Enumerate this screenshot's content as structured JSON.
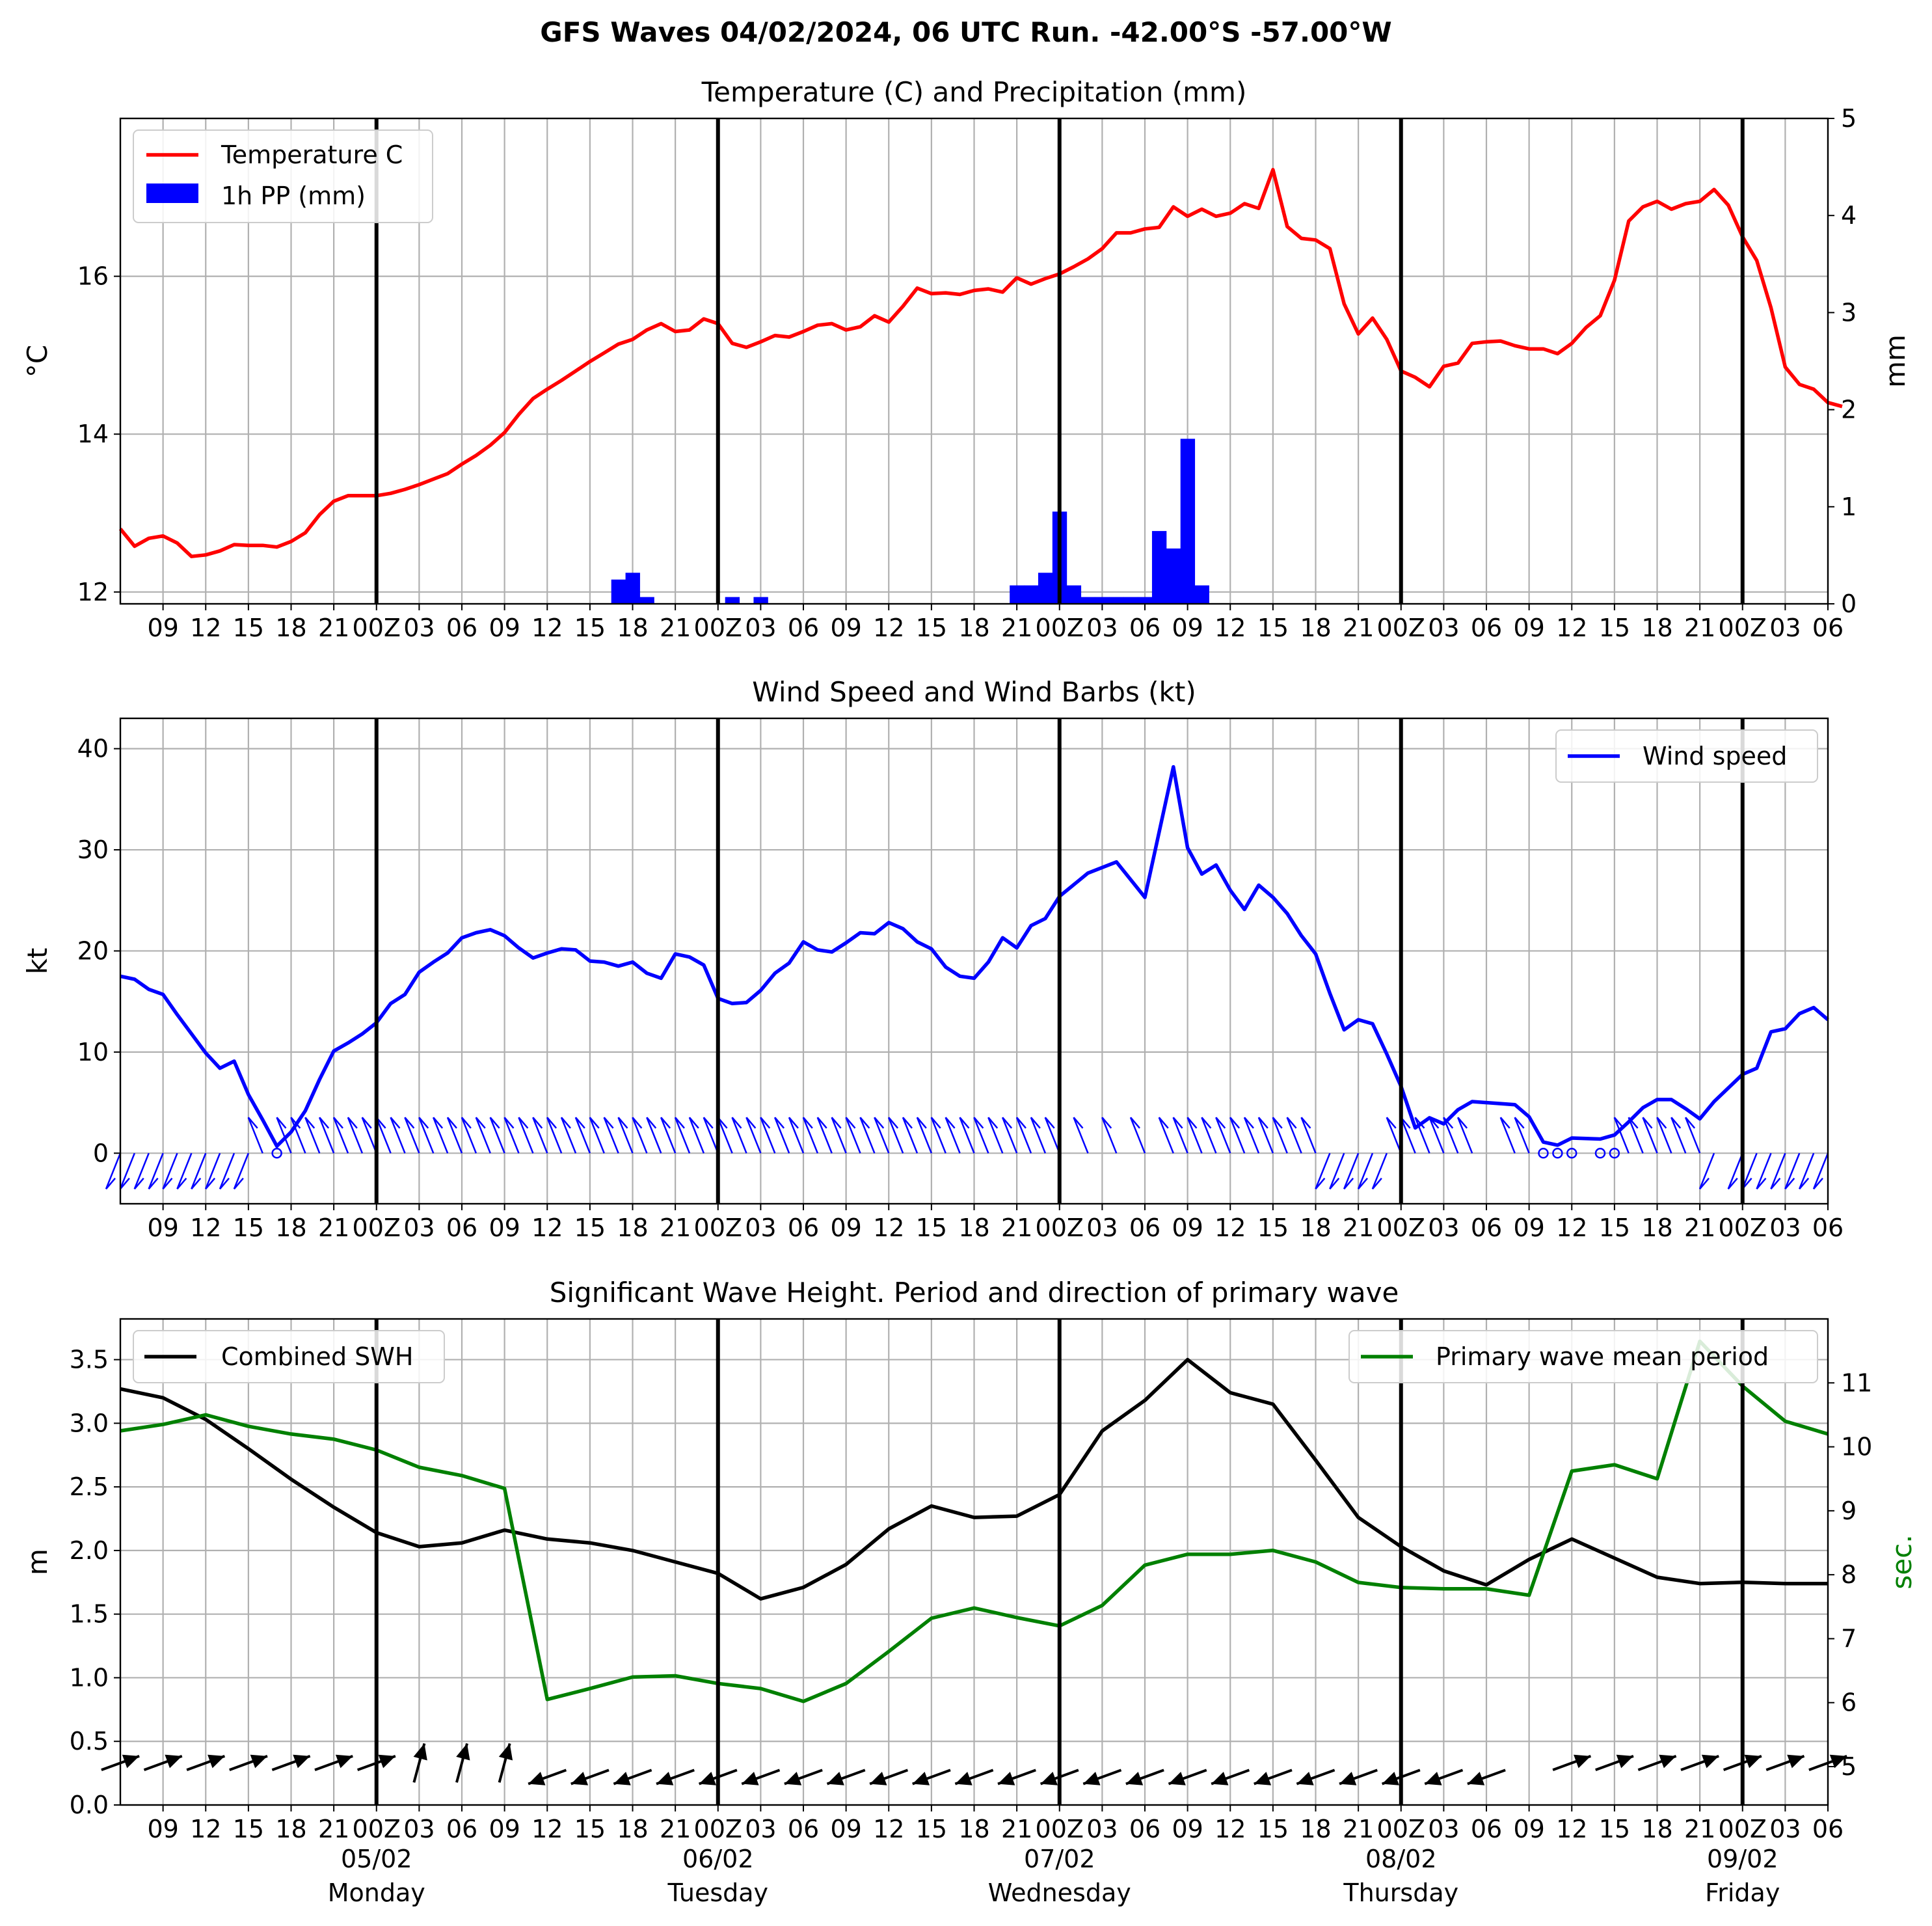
{
  "chart_data": {
    "type": "multi-panel",
    "title": "GFS Waves 04/02/2024, 06 UTC Run. -42.00°S -57.00°W",
    "x_tick_labels": [
      "09",
      "12",
      "15",
      "18",
      "21",
      "00Z",
      "03",
      "06",
      "09",
      "12",
      "15",
      "18",
      "21",
      "00Z",
      "03",
      "06",
      "09",
      "12",
      "15",
      "18",
      "21",
      "00Z",
      "03",
      "06",
      "09",
      "12",
      "15",
      "18",
      "21",
      "00Z",
      "03",
      "06",
      "09",
      "12",
      "15",
      "18",
      "21",
      "00Z",
      "03",
      "06"
    ],
    "days": [
      {
        "date": "05/02",
        "weekday": "Monday"
      },
      {
        "date": "06/02",
        "weekday": "Tuesday"
      },
      {
        "date": "07/02",
        "weekday": "Wednesday"
      },
      {
        "date": "08/02",
        "weekday": "Thursday"
      },
      {
        "date": "09/02",
        "weekday": "Friday"
      }
    ],
    "panels": [
      {
        "title": "Temperature (C) and Precipitation (mm)",
        "ylabel": "°C",
        "ylabel_right": "mm",
        "ylim": [
          11.85,
          18.0
        ],
        "ylim_right": [
          0,
          5
        ],
        "yticks": [
          12,
          14,
          16
        ],
        "yticks_right": [
          0,
          1,
          2,
          3,
          4,
          5
        ],
        "series": [
          {
            "name": "Temperature C",
            "color": "#ff0000",
            "type": "line",
            "step_h": 1,
            "values": [
              12.8,
              12.58,
              12.68,
              12.71,
              12.62,
              12.45,
              12.47,
              12.52,
              12.6,
              12.59,
              12.59,
              12.57,
              12.64,
              12.75,
              12.98,
              13.15,
              13.22,
              13.22,
              13.22,
              13.25,
              13.3,
              13.36,
              13.43,
              13.5,
              13.62,
              13.73,
              13.86,
              14.02,
              14.25,
              14.45,
              14.57,
              14.68,
              14.8,
              14.92,
              15.03,
              15.14,
              15.2,
              15.32,
              15.4,
              15.3,
              15.32,
              15.46,
              15.4,
              15.15,
              15.1,
              15.17,
              15.25,
              15.23,
              15.3,
              15.38,
              15.4,
              15.32,
              15.36,
              15.5,
              15.42,
              15.62,
              15.85,
              15.78,
              15.79,
              15.77,
              15.82,
              15.84,
              15.8,
              15.98,
              15.9,
              15.97,
              16.03,
              16.12,
              16.22,
              16.35,
              16.55,
              16.55,
              16.6,
              16.62,
              16.88,
              16.76,
              16.85,
              16.76,
              16.8,
              16.92,
              16.86,
              17.35,
              16.63,
              16.48,
              16.46,
              16.35,
              15.65,
              15.27,
              15.47,
              15.2,
              14.8,
              14.72,
              14.6,
              14.86,
              14.9,
              15.15,
              15.17,
              15.18,
              15.12,
              15.08,
              15.08,
              15.02,
              15.15,
              15.35,
              15.5,
              15.95,
              16.7,
              16.88,
              16.95,
              16.85,
              16.92,
              16.95,
              17.1,
              16.9,
              16.5,
              16.2,
              15.6,
              14.85,
              14.63,
              14.57,
              14.4,
              14.35
            ]
          },
          {
            "name": "1h PP (mm)",
            "color": "#0000ff",
            "type": "bar",
            "axis": "right",
            "bars": [
              {
                "h": 41,
                "v": 0.25
              },
              {
                "h": 42,
                "v": 0.32
              },
              {
                "h": 43,
                "v": 0.07
              },
              {
                "h": 49,
                "v": 0.07
              },
              {
                "h": 51,
                "v": 0.07
              },
              {
                "h": 69,
                "v": 0.19
              },
              {
                "h": 70,
                "v": 0.19
              },
              {
                "h": 71,
                "v": 0.32
              },
              {
                "h": 72,
                "v": 0.95
              },
              {
                "h": 73,
                "v": 0.19
              },
              {
                "h": 74,
                "v": 0.07
              },
              {
                "h": 75,
                "v": 0.07
              },
              {
                "h": 76,
                "v": 0.07
              },
              {
                "h": 77,
                "v": 0.07
              },
              {
                "h": 78,
                "v": 0.07
              },
              {
                "h": 79,
                "v": 0.75
              },
              {
                "h": 80,
                "v": 0.57
              },
              {
                "h": 81,
                "v": 1.7
              },
              {
                "h": 82,
                "v": 0.19
              }
            ]
          }
        ]
      },
      {
        "title": "Wind Speed and Wind Barbs (kt)",
        "ylabel": "kt",
        "ylim": [
          -5,
          43
        ],
        "yticks": [
          0,
          10,
          20,
          30,
          40
        ],
        "series": [
          {
            "name": "Wind speed",
            "color": "#0000ff",
            "type": "line",
            "points": [
              [
                6,
                17.5
              ],
              [
                7,
                17.2
              ],
              [
                8,
                16.2
              ],
              [
                9,
                15.7
              ],
              [
                10,
                13.7
              ],
              [
                11,
                11.8
              ],
              [
                12,
                9.9
              ],
              [
                13,
                8.4
              ],
              [
                14,
                9.1
              ],
              [
                15,
                5.8
              ],
              [
                16,
                3.3
              ],
              [
                17,
                0.7
              ],
              [
                18,
                2.1
              ],
              [
                19,
                4.2
              ],
              [
                20,
                7.3
              ],
              [
                21,
                10.1
              ],
              [
                22,
                10.9
              ],
              [
                23,
                11.8
              ],
              [
                24,
                12.9
              ],
              [
                25,
                14.8
              ],
              [
                26,
                15.7
              ],
              [
                27,
                17.9
              ],
              [
                28,
                18.9
              ],
              [
                29,
                19.8
              ],
              [
                30,
                21.3
              ],
              [
                31,
                21.8
              ],
              [
                32,
                22.1
              ],
              [
                33,
                21.5
              ],
              [
                34,
                20.3
              ],
              [
                35,
                19.3
              ],
              [
                36,
                19.8
              ],
              [
                37,
                20.2
              ],
              [
                38,
                20.1
              ],
              [
                39,
                19.0
              ],
              [
                40,
                18.9
              ],
              [
                41,
                18.5
              ],
              [
                42,
                18.9
              ],
              [
                43,
                17.8
              ],
              [
                44,
                17.3
              ],
              [
                45,
                19.7
              ],
              [
                46,
                19.4
              ],
              [
                47,
                18.6
              ],
              [
                48,
                15.3
              ],
              [
                49,
                14.8
              ],
              [
                50,
                14.9
              ],
              [
                51,
                16.1
              ],
              [
                52,
                17.8
              ],
              [
                53,
                18.8
              ],
              [
                54,
                20.9
              ],
              [
                55,
                20.1
              ],
              [
                56,
                19.9
              ],
              [
                57,
                20.8
              ],
              [
                58,
                21.8
              ],
              [
                59,
                21.7
              ],
              [
                60,
                22.8
              ],
              [
                61,
                22.2
              ],
              [
                62,
                20.9
              ],
              [
                63,
                20.2
              ],
              [
                64,
                18.4
              ],
              [
                65,
                17.5
              ],
              [
                66,
                17.3
              ],
              [
                67,
                18.9
              ],
              [
                68,
                21.3
              ],
              [
                69,
                20.3
              ],
              [
                70,
                22.5
              ],
              [
                71,
                23.2
              ],
              [
                72,
                25.4
              ],
              [
                74,
                27.7
              ],
              [
                76,
                28.8
              ],
              [
                78,
                25.3
              ],
              [
                80,
                38.2
              ],
              [
                81,
                30.2
              ],
              [
                82,
                27.6
              ],
              [
                83,
                28.5
              ],
              [
                84,
                26.0
              ],
              [
                85,
                24.1
              ],
              [
                86,
                26.5
              ],
              [
                87,
                25.3
              ],
              [
                88,
                23.7
              ],
              [
                89,
                21.5
              ],
              [
                90,
                19.7
              ],
              [
                91,
                15.8
              ],
              [
                92,
                12.2
              ],
              [
                93,
                13.2
              ],
              [
                94,
                12.8
              ],
              [
                95,
                9.8
              ],
              [
                96,
                6.6
              ],
              [
                97,
                2.5
              ],
              [
                98,
                3.5
              ],
              [
                99,
                2.9
              ],
              [
                100,
                4.3
              ],
              [
                101,
                5.1
              ],
              [
                104,
                4.8
              ],
              [
                105,
                3.6
              ],
              [
                106,
                1.1
              ],
              [
                107,
                0.8
              ],
              [
                108,
                1.5
              ],
              [
                110,
                1.4
              ],
              [
                111,
                1.8
              ],
              [
                112,
                3.1
              ],
              [
                113,
                4.5
              ],
              [
                114,
                5.3
              ],
              [
                115,
                5.3
              ],
              [
                116,
                4.4
              ],
              [
                117,
                3.4
              ],
              [
                118,
                5.1
              ],
              [
                120,
                7.8
              ],
              [
                121,
                8.4
              ],
              [
                122,
                12.0
              ],
              [
                123,
                12.3
              ],
              [
                124,
                13.8
              ],
              [
                125,
                14.4
              ],
              [
                126,
                13.2
              ]
            ]
          }
        ]
      },
      {
        "title": "Significant Wave Height. Period and direction of primary wave",
        "ylabel": "m",
        "ylabel_right": "sec.",
        "ylim": [
          0,
          3.82
        ],
        "ylim_right": [
          4.4,
          12.0
        ],
        "yticks": [
          0.0,
          0.5,
          1.0,
          1.5,
          2.0,
          2.5,
          3.0,
          3.5
        ],
        "yticks_right": [
          5,
          6,
          7,
          8,
          9,
          10,
          11
        ],
        "series": [
          {
            "name": "Combined SWH",
            "color": "#000000",
            "type": "line",
            "step_h": 3,
            "values": [
              3.27,
              3.2,
              3.03,
              2.8,
              2.56,
              2.34,
              2.14,
              2.03,
              2.06,
              2.16,
              2.09,
              2.06,
              2.0,
              1.91,
              1.82,
              1.62,
              1.71,
              1.89,
              2.17,
              2.35,
              2.26,
              2.27,
              2.44,
              2.94,
              3.18,
              3.5,
              3.24,
              3.15,
              2.71,
              2.26,
              2.03,
              1.84,
              1.73,
              1.93,
              2.09,
              1.94,
              1.79,
              1.74,
              1.75,
              1.74,
              1.74
            ]
          },
          {
            "name": "Primary wave mean period",
            "color": "#008000",
            "type": "line",
            "axis": "right",
            "step_h": 3,
            "values": [
              10.25,
              10.35,
              10.5,
              10.32,
              10.2,
              10.12,
              9.95,
              9.68,
              9.55,
              9.35,
              6.05,
              6.22,
              6.4,
              6.42,
              6.3,
              6.22,
              6.02,
              6.3,
              6.8,
              7.32,
              7.48,
              7.33,
              7.2,
              7.52,
              8.15,
              8.32,
              8.32,
              8.38,
              8.2,
              7.88,
              7.8,
              7.78,
              7.78,
              7.68,
              9.62,
              9.72,
              9.5,
              11.65,
              10.95,
              10.4,
              10.2
            ]
          },
          {
            "name": "primary wave direction",
            "color": "#000000",
            "type": "arrows",
            "step_h": 3,
            "directions": [
              "NE",
              "NE",
              "NE",
              "NE",
              "NE",
              "NE",
              "NE",
              "N",
              "N",
              "N",
              "SW",
              "SW",
              "SW",
              "SW",
              "SW",
              "SW",
              "SW",
              "SW",
              "SW",
              "SW",
              "SW",
              "SW",
              "SW",
              "SW",
              "SW",
              "SW",
              "SW",
              "SW",
              "SW",
              "SW",
              "SW",
              "SW",
              "SW",
              "",
              "NE",
              "NE",
              "NE",
              "NE",
              "NE",
              "NE",
              "NE"
            ]
          }
        ]
      }
    ]
  }
}
